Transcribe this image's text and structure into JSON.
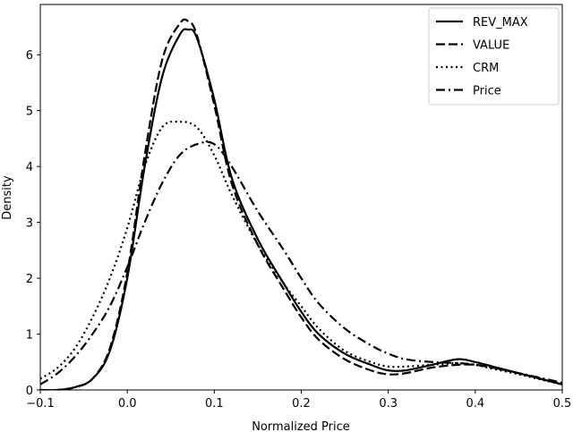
{
  "chart_data": {
    "type": "line",
    "title": "",
    "xlabel": "Normalized Price",
    "ylabel": "Density",
    "xlim": [
      -0.1,
      0.5
    ],
    "ylim": [
      0,
      6.9
    ],
    "xticks": [
      -0.1,
      0.0,
      0.1,
      0.2,
      0.3,
      0.4,
      0.5
    ],
    "xtick_labels": [
      "−0.1",
      "0.0",
      "0.1",
      "0.2",
      "0.3",
      "0.4",
      "0.5"
    ],
    "yticks": [
      0,
      1,
      2,
      3,
      4,
      5,
      6
    ],
    "ytick_labels": [
      "0",
      "1",
      "2",
      "3",
      "4",
      "5",
      "6"
    ],
    "grid": false,
    "legend_position": "top-right",
    "series": [
      {
        "name": "REV_MAX",
        "style": "solid",
        "x": [
          -0.1,
          -0.08,
          -0.06,
          -0.04,
          -0.02,
          0.0,
          0.02,
          0.04,
          0.06,
          0.07,
          0.08,
          0.1,
          0.12,
          0.15,
          0.18,
          0.2,
          0.22,
          0.25,
          0.28,
          0.3,
          0.32,
          0.35,
          0.38,
          0.4,
          0.42,
          0.45,
          0.48,
          0.5
        ],
        "y": [
          0.0,
          0.0,
          0.05,
          0.2,
          0.7,
          2.0,
          4.0,
          5.6,
          6.35,
          6.45,
          6.3,
          5.2,
          3.8,
          2.7,
          1.9,
          1.4,
          1.0,
          0.65,
          0.45,
          0.35,
          0.35,
          0.45,
          0.55,
          0.5,
          0.42,
          0.3,
          0.18,
          0.1
        ]
      },
      {
        "name": "VALUE",
        "style": "dashed",
        "x": [
          -0.1,
          -0.08,
          -0.06,
          -0.04,
          -0.02,
          0.0,
          0.02,
          0.04,
          0.06,
          0.07,
          0.08,
          0.1,
          0.12,
          0.15,
          0.18,
          0.2,
          0.22,
          0.25,
          0.28,
          0.3,
          0.32,
          0.35,
          0.38,
          0.4,
          0.42,
          0.45,
          0.48,
          0.5
        ],
        "y": [
          0.0,
          0.0,
          0.05,
          0.2,
          0.75,
          2.1,
          4.2,
          5.9,
          6.55,
          6.6,
          6.35,
          5.1,
          3.7,
          2.6,
          1.8,
          1.3,
          0.9,
          0.55,
          0.35,
          0.28,
          0.3,
          0.4,
          0.45,
          0.45,
          0.4,
          0.3,
          0.18,
          0.1
        ]
      },
      {
        "name": "CRM",
        "style": "dotted",
        "x": [
          -0.1,
          -0.08,
          -0.06,
          -0.04,
          -0.02,
          0.0,
          0.02,
          0.04,
          0.06,
          0.08,
          0.1,
          0.12,
          0.15,
          0.18,
          0.2,
          0.22,
          0.25,
          0.28,
          0.3,
          0.32,
          0.35,
          0.38,
          0.4,
          0.42,
          0.45,
          0.48,
          0.5
        ],
        "y": [
          0.2,
          0.4,
          0.75,
          1.3,
          2.0,
          2.9,
          4.0,
          4.7,
          4.8,
          4.7,
          4.2,
          3.5,
          2.6,
          1.9,
          1.5,
          1.1,
          0.7,
          0.5,
          0.42,
          0.42,
          0.45,
          0.48,
          0.45,
          0.38,
          0.28,
          0.17,
          0.1
        ]
      },
      {
        "name": "Price",
        "style": "dashdot",
        "x": [
          -0.1,
          -0.08,
          -0.06,
          -0.04,
          -0.02,
          0.0,
          0.02,
          0.04,
          0.06,
          0.08,
          0.1,
          0.12,
          0.15,
          0.18,
          0.2,
          0.22,
          0.25,
          0.28,
          0.3,
          0.32,
          0.35,
          0.38,
          0.4,
          0.42,
          0.45,
          0.48,
          0.5
        ],
        "y": [
          0.1,
          0.3,
          0.6,
          1.0,
          1.5,
          2.2,
          3.0,
          3.7,
          4.2,
          4.4,
          4.4,
          4.0,
          3.2,
          2.5,
          2.0,
          1.55,
          1.1,
          0.8,
          0.65,
          0.55,
          0.5,
          0.48,
          0.45,
          0.4,
          0.3,
          0.2,
          0.13
        ]
      }
    ]
  }
}
